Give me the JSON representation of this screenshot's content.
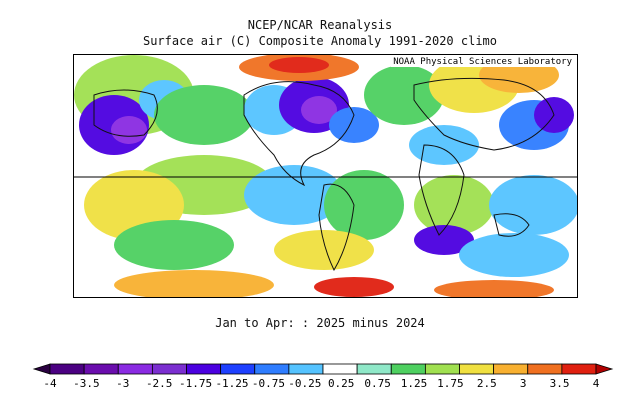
{
  "header": {
    "title": "NCEP/NCAR Reanalysis",
    "subtitle": "Surface air (C) Composite Anomaly 1991-2020 climo"
  },
  "map": {
    "credit": "NOAA Physical Sciences Laboratory",
    "caption": "Jan to Apr: : 2025 minus 2024"
  },
  "colorbar": {
    "labels": [
      "-4",
      "-3.5",
      "-3",
      "-2.5",
      "-1.75",
      "-1.25",
      "-0.75",
      "-0.25",
      "0.25",
      "0.75",
      "1.25",
      "1.75",
      "2.5",
      "3",
      "3.5",
      "4"
    ],
    "colors": [
      "#4b0082",
      "#6a0dad",
      "#8a2be2",
      "#7b2fd0",
      "#4b00e0",
      "#1e40ff",
      "#2f7dff",
      "#55c3ff",
      "#ffffff",
      "#8fe8c8",
      "#4ed060",
      "#a0e050",
      "#f0e040",
      "#f8b030",
      "#f07020",
      "#e02010"
    ],
    "min_label": "-4",
    "max_label": "4"
  }
}
